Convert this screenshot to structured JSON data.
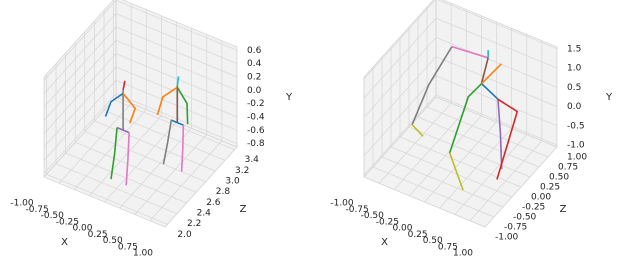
{
  "chart_data": [
    {
      "type": "line3d",
      "xlabel": "X",
      "ylabel": "Y",
      "zlabel": "Z",
      "xlim": [
        -1,
        1
      ],
      "ylim": [
        -0.85,
        0.65
      ],
      "zlim": [
        1.95,
        3.45
      ],
      "xticks": [
        {
          "value": -1,
          "label": "-1.00"
        },
        -0.75,
        {
          "value": -0.5,
          "label": "-0.50"
        },
        -0.25,
        {
          "value": 0,
          "label": "0.00"
        },
        0.25,
        {
          "value": 0.5,
          "label": "0.50"
        },
        0.75,
        {
          "value": 1,
          "label": "1.00"
        }
      ],
      "yticks": [
        -0.8,
        -0.6,
        -0.4,
        -0.2,
        {
          "value": 0,
          "label": "0.0"
        },
        0.2,
        0.4,
        0.6
      ],
      "zticks": [
        {
          "value": 2,
          "label": "2.0"
        },
        2.2,
        2.4,
        2.6,
        2.8,
        {
          "value": 3,
          "label": "3.0"
        },
        3.2,
        3.4
      ],
      "series": [
        {
          "color": "#7f7f7f",
          "x": [
            -0.05,
            -0.05,
            -0.05
          ],
          "y": [
            -0.15,
            0.25,
            0.45
          ],
          "z": [
            2.4,
            2.4,
            2.4
          ]
        },
        {
          "color": "#d62728",
          "x": [
            -0.05,
            -0.02
          ],
          "y": [
            0.45,
            0.6
          ],
          "z": [
            2.4,
            2.4
          ]
        },
        {
          "color": "#1f77b4",
          "x": [
            -0.05,
            -0.25,
            -0.3
          ],
          "y": [
            0.4,
            0.2,
            0.0
          ],
          "z": [
            2.4,
            2.4,
            2.35
          ]
        },
        {
          "color": "#ff7f0e",
          "x": [
            -0.05,
            0.15,
            0.1
          ],
          "y": [
            0.4,
            0.25,
            0.05
          ],
          "z": [
            2.4,
            2.4,
            2.35
          ]
        },
        {
          "color": "#9467bd",
          "x": [
            -0.15,
            0.05
          ],
          "y": [
            -0.15,
            -0.15
          ],
          "z": [
            2.4,
            2.4
          ]
        },
        {
          "color": "#2ca02c",
          "x": [
            -0.15,
            -0.15,
            -0.17
          ],
          "y": [
            -0.15,
            -0.5,
            -0.85
          ],
          "z": [
            2.4,
            2.35,
            2.3
          ]
        },
        {
          "color": "#e377c2",
          "x": [
            0.05,
            0.07,
            0.08
          ],
          "y": [
            -0.15,
            -0.5,
            -0.85
          ],
          "z": [
            2.4,
            2.35,
            2.3
          ]
        },
        {
          "color": "#8c564b",
          "x": [
            0.45,
            0.45,
            0.45
          ],
          "y": [
            -0.25,
            0.1,
            0.3
          ],
          "z": [
            2.9,
            2.9,
            2.9
          ]
        },
        {
          "color": "#17becf",
          "x": [
            0.45,
            0.47
          ],
          "y": [
            0.3,
            0.45
          ],
          "z": [
            2.9,
            2.9
          ]
        },
        {
          "color": "#ff7f0e",
          "x": [
            0.45,
            0.25,
            0.2
          ],
          "y": [
            0.28,
            0.1,
            -0.15
          ],
          "z": [
            2.9,
            2.85,
            2.8
          ]
        },
        {
          "color": "#2ca02c",
          "x": [
            0.45,
            0.65,
            0.7
          ],
          "y": [
            0.28,
            0.15,
            -0.1
          ],
          "z": [
            2.9,
            2.85,
            2.8
          ]
        },
        {
          "color": "#1f77b4",
          "x": [
            0.35,
            0.55
          ],
          "y": [
            -0.25,
            -0.25
          ],
          "z": [
            2.9,
            2.9
          ]
        },
        {
          "color": "#7f7f7f",
          "x": [
            0.35,
            0.33,
            0.3
          ],
          "y": [
            -0.25,
            -0.55,
            -0.85
          ],
          "z": [
            2.9,
            2.85,
            2.8
          ]
        },
        {
          "color": "#e377c2",
          "x": [
            0.55,
            0.58,
            0.6
          ],
          "y": [
            -0.25,
            -0.55,
            -0.85
          ],
          "z": [
            2.9,
            2.85,
            2.8
          ]
        }
      ]
    },
    {
      "type": "line3d",
      "xlabel": "X",
      "ylabel": "Y",
      "zlabel": "Z",
      "xlim": [
        -1,
        1
      ],
      "ylim": [
        -1.05,
        1.55
      ],
      "zlim": [
        -1,
        1
      ],
      "xticks": [
        {
          "value": -1,
          "label": "-1.00"
        },
        -0.75,
        {
          "value": -0.5,
          "label": "-0.50"
        },
        -0.25,
        {
          "value": 0,
          "label": "0.00"
        },
        0.25,
        {
          "value": 0.5,
          "label": "0.50"
        },
        0.75,
        {
          "value": 1,
          "label": "1.00"
        }
      ],
      "yticks": [
        {
          "value": -1,
          "label": "-1.0"
        },
        -0.5,
        {
          "value": 0,
          "label": "0.0"
        },
        0.5,
        {
          "value": 1,
          "label": "1.0"
        },
        1.5
      ],
      "zticks": [
        {
          "value": -1,
          "label": "-1.00"
        },
        -0.75,
        {
          "value": -0.5,
          "label": "-0.50"
        },
        -0.25,
        {
          "value": 0,
          "label": "0.00"
        },
        0.25,
        {
          "value": 0.5,
          "label": "0.50"
        },
        0.75,
        {
          "value": 1,
          "label": "1.00"
        }
      ],
      "series": [
        {
          "color": "#e377c2",
          "x": [
            -0.5,
            0.1
          ],
          "y": [
            1.0,
            1.1
          ],
          "z": [
            0.6,
            0.6
          ]
        },
        {
          "color": "#17becf",
          "x": [
            0.1,
            0.1
          ],
          "y": [
            1.1,
            1.3
          ],
          "z": [
            0.6,
            0.6
          ]
        },
        {
          "color": "#8c564b",
          "x": [
            0.1,
            0.05
          ],
          "y": [
            1.1,
            0.5
          ],
          "z": [
            0.6,
            0.5
          ]
        },
        {
          "color": "#7f7f7f",
          "x": [
            -0.5,
            -0.7,
            -0.8
          ],
          "y": [
            1.0,
            0.2,
            -0.6
          ],
          "z": [
            0.6,
            0.3,
            0.0
          ]
        },
        {
          "color": "#bcbd22",
          "x": [
            -0.8,
            -0.5
          ],
          "y": [
            -0.6,
            -0.5
          ],
          "z": [
            0.0,
            -0.2
          ]
        },
        {
          "color": "#1f77b4",
          "x": [
            0.05,
            0.5
          ],
          "y": [
            0.5,
            0.7
          ],
          "z": [
            0.5,
            0.2
          ]
        },
        {
          "color": "#2ca02c",
          "x": [
            0.05,
            -0.05,
            0.0
          ],
          "y": [
            0.5,
            0.3,
            -0.5
          ],
          "z": [
            0.5,
            0.3,
            -0.3
          ]
        },
        {
          "color": "#9467bd",
          "x": [
            0.5,
            0.6,
            0.8
          ],
          "y": [
            0.7,
            0.0,
            -0.5
          ],
          "z": [
            0.2,
            0.1,
            -0.2
          ]
        },
        {
          "color": "#d62728",
          "x": [
            0.5,
            0.7,
            0.9
          ],
          "y": [
            0.7,
            0.3,
            -0.4
          ],
          "z": [
            0.2,
            0.4,
            -0.5
          ]
        },
        {
          "color": "#bcbd22",
          "x": [
            0.0,
            0.4
          ],
          "y": [
            -0.5,
            -0.9
          ],
          "z": [
            -0.3,
            -0.6
          ]
        },
        {
          "color": "#ff7f0e",
          "x": [
            0.05,
            0.2
          ],
          "y": [
            0.5,
            0.8
          ],
          "z": [
            0.5,
            0.8
          ]
        }
      ]
    }
  ]
}
